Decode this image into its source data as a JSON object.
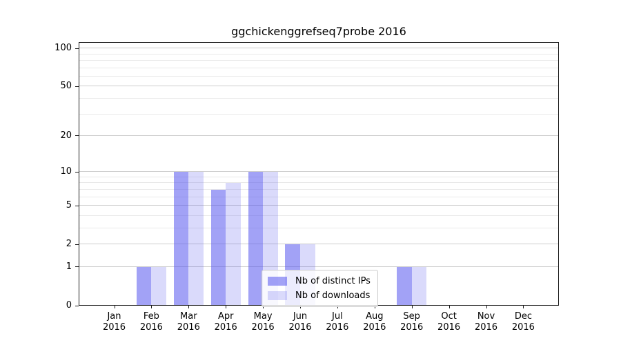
{
  "chart_data": {
    "type": "bar",
    "title": "ggchickenggrefseq7probe 2016",
    "x_tick_year": "2016",
    "categories": [
      "Jan",
      "Feb",
      "Mar",
      "Apr",
      "May",
      "Jun",
      "Jul",
      "Aug",
      "Sep",
      "Oct",
      "Nov",
      "Dec"
    ],
    "series": [
      {
        "name": "Nb of distinct IPs",
        "color": "rgba(85,85,238,0.55)",
        "color_on_white": "#a9a9f4",
        "values": [
          0,
          1,
          10,
          7,
          10,
          2,
          0,
          0,
          1,
          0,
          0,
          0
        ]
      },
      {
        "name": "Nb of downloads",
        "color": "rgba(85,85,238,0.22)",
        "color_on_white": "#d9d9fb",
        "values": [
          0,
          1,
          10,
          8,
          10,
          2,
          0,
          0,
          1,
          0,
          0,
          0
        ]
      }
    ],
    "y_axis": {
      "scale": "log1p",
      "min": 0,
      "max": 112,
      "major_ticks": [
        0,
        1,
        2,
        5,
        10,
        20,
        50,
        100
      ],
      "minor_gridlines": [
        3,
        4,
        6,
        7,
        8,
        9,
        30,
        40,
        60,
        70,
        80,
        90
      ]
    },
    "grid": true,
    "legend_position": "lower center",
    "colors": {
      "background": "#ffffff",
      "major_grid": "#cdcdcd",
      "minor_grid": "#e9e9e9",
      "spine": "#1a1a1a",
      "text": "#000000"
    }
  }
}
